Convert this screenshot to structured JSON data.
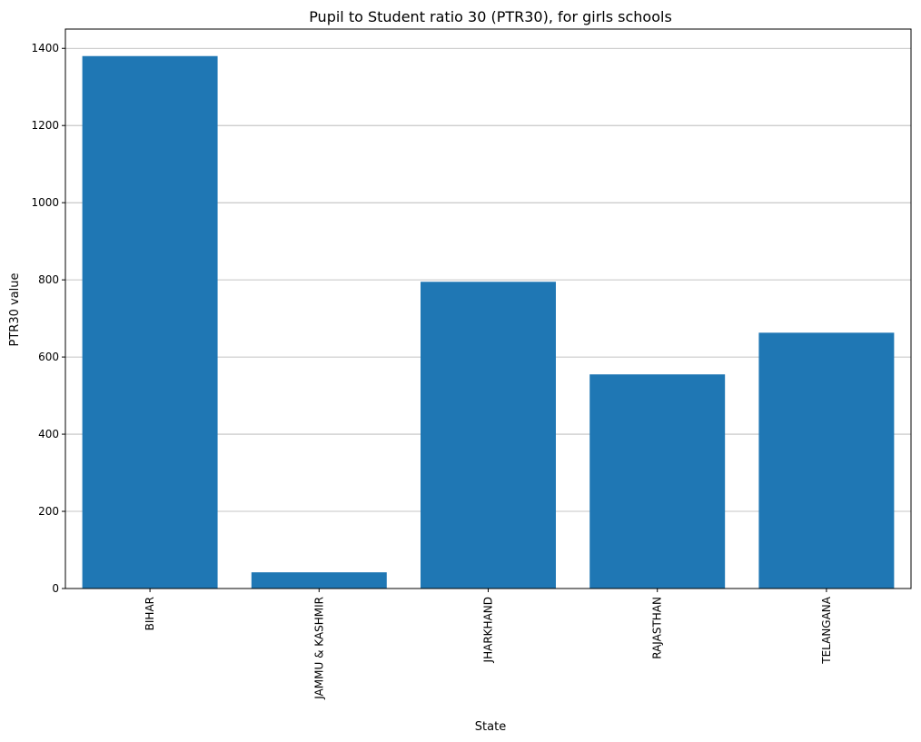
{
  "chart_data": {
    "type": "bar",
    "title": "Pupil to Student ratio 30 (PTR30), for girls schools",
    "xlabel": "State",
    "ylabel": "PTR30 value",
    "categories": [
      "BIHAR",
      "JAMMU & KASHMIR",
      "JHARKHAND",
      "RAJASTHAN",
      "TELANGANA"
    ],
    "values": [
      1380,
      42,
      795,
      555,
      663
    ],
    "ylim": [
      0,
      1450
    ],
    "yticks": [
      0,
      200,
      400,
      600,
      800,
      1000,
      1200,
      1400
    ],
    "grid": "y",
    "colors": {
      "bar": "#1f77b4",
      "grid": "#b0b0b0",
      "axis": "#000000"
    }
  }
}
